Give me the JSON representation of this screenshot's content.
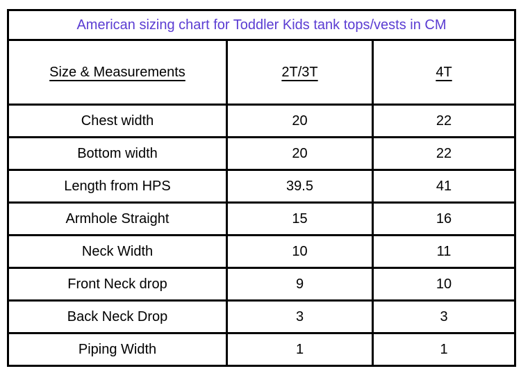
{
  "chart_data": {
    "type": "table",
    "title": "American sizing chart for Toddler Kids tank tops/vests in CM",
    "units": "CM",
    "columns": [
      "Size & Measurements",
      "2T/3T",
      "4T"
    ],
    "rows": [
      {
        "label": "Chest width",
        "values": [
          "20",
          "22"
        ]
      },
      {
        "label": "Bottom width",
        "values": [
          "20",
          "22"
        ]
      },
      {
        "label": "Length from HPS",
        "values": [
          "39.5",
          "41"
        ]
      },
      {
        "label": "Armhole Straight",
        "values": [
          "15",
          "16"
        ]
      },
      {
        "label": "Neck Width",
        "values": [
          "10",
          "11"
        ]
      },
      {
        "label": "Front Neck drop",
        "values": [
          "9",
          "10"
        ]
      },
      {
        "label": "Back Neck Drop",
        "values": [
          "3",
          "3"
        ]
      },
      {
        "label": "Piping Width",
        "values": [
          "1",
          "1"
        ]
      }
    ],
    "layout": {
      "legend": "none",
      "grid": "full-borders"
    }
  },
  "styles": {
    "title_color": "#5a3cd2",
    "border_color": "#000000",
    "background_color": "#ffffff",
    "text_color": "#000000"
  }
}
